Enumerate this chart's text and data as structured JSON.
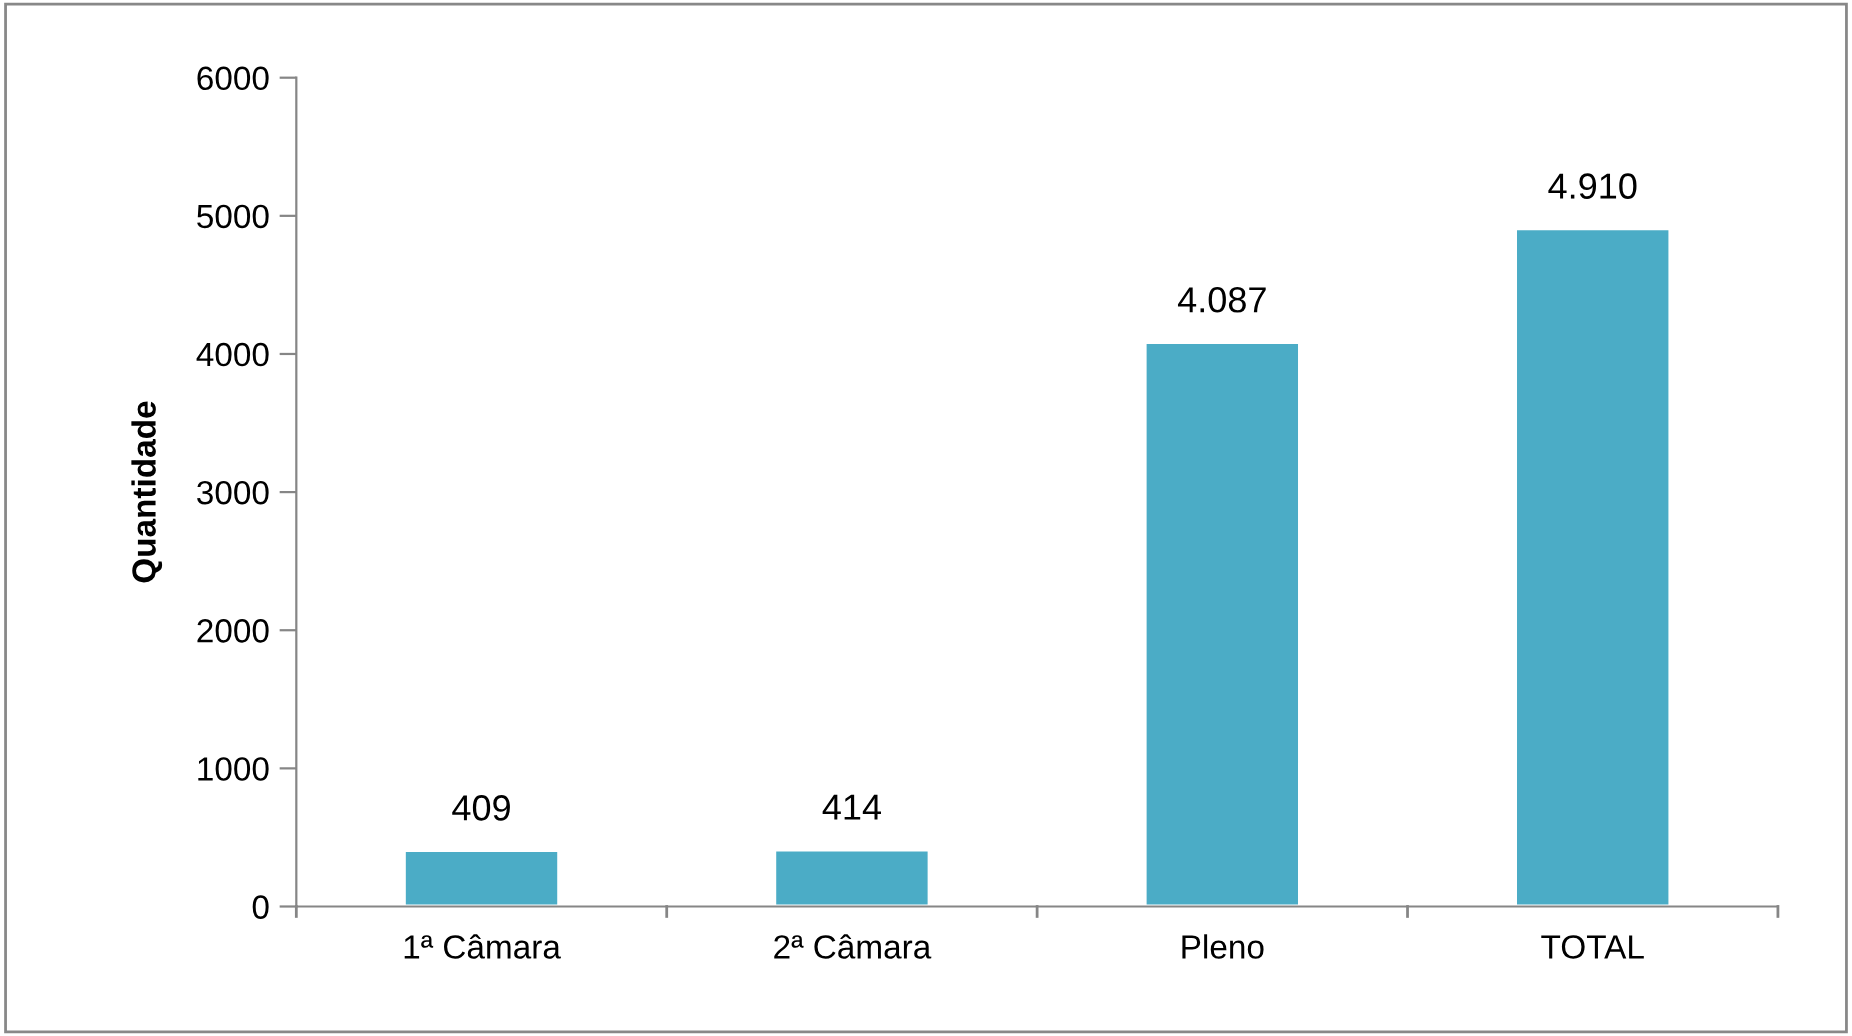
{
  "chart_data": {
    "type": "bar",
    "ylabel": "Quantidade",
    "categories": [
      "1ª Câmara",
      "2ª Câmara",
      "Pleno",
      "TOTAL"
    ],
    "values": [
      409,
      414,
      4087,
      4910
    ],
    "value_labels": [
      "409",
      "414",
      "4.087",
      "4.910"
    ],
    "color": "#4bacc6",
    "ylim": [
      0,
      6000
    ],
    "yticks": [
      0,
      1000,
      2000,
      3000,
      4000,
      5000,
      6000
    ],
    "grid": false
  }
}
